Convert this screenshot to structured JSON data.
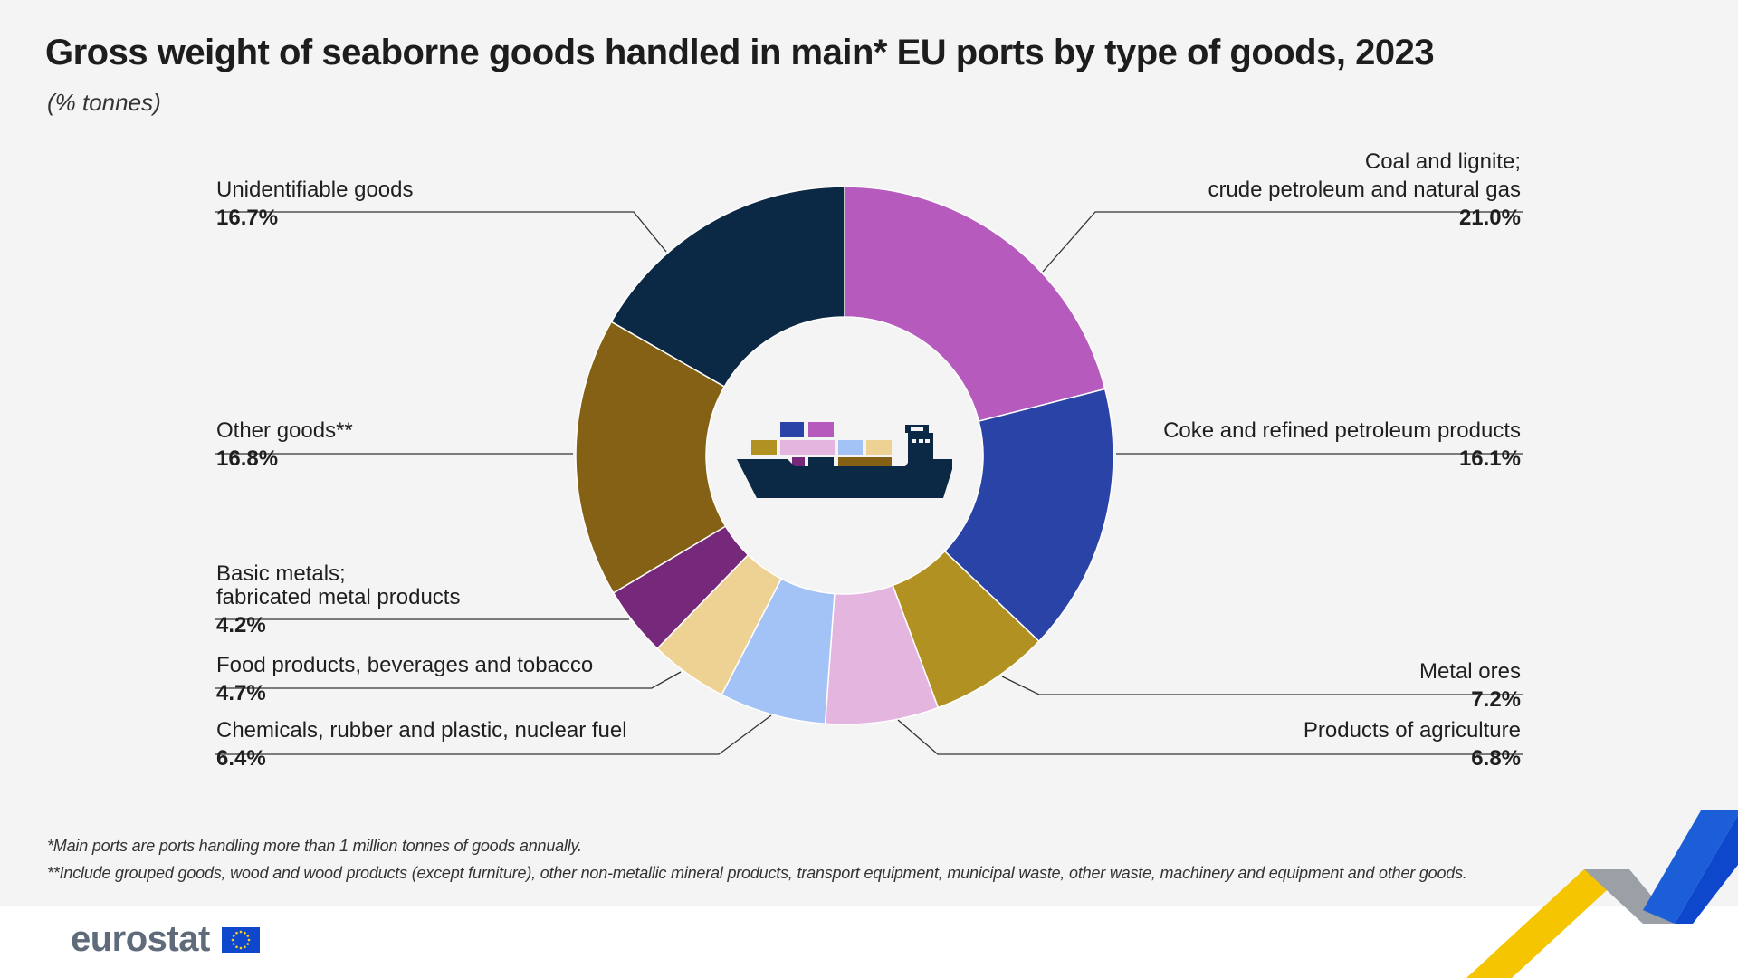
{
  "title": "Gross weight of seaborne goods handled in main* EU ports by type of goods, 2023",
  "subtitle": "(% tonnes)",
  "footnotes": [
    "*Main ports are ports handling more than 1 million tonnes of goods annually.",
    "**Include grouped goods, wood and wood products (except furniture), other non-metallic mineral products, transport equipment, municipal waste, other waste, machinery and equipment and other goods."
  ],
  "brand": "eurostat",
  "chart_data": {
    "type": "pie",
    "variant": "donut",
    "unit": "%",
    "slices": [
      {
        "label": "Coal and lignite;\ncrude petroleum and natural gas",
        "value": 21.0,
        "value_label": "21.0%",
        "color": "#b65bbd",
        "side": "right"
      },
      {
        "label": "Coke and refined petroleum products",
        "value": 16.1,
        "value_label": "16.1%",
        "color": "#2a43a6",
        "side": "right"
      },
      {
        "label": "Metal ores",
        "value": 7.2,
        "value_label": "7.2%",
        "color": "#b09122",
        "side": "right"
      },
      {
        "label": "Products of agriculture",
        "value": 6.8,
        "value_label": "6.8%",
        "color": "#e3b5df",
        "side": "right"
      },
      {
        "label": "Chemicals, rubber and plastic, nuclear fuel",
        "value": 6.4,
        "value_label": "6.4%",
        "color": "#a3c3f7",
        "side": "left"
      },
      {
        "label": "Food products, beverages and tobacco",
        "value": 4.7,
        "value_label": "4.7%",
        "color": "#eed293",
        "side": "left"
      },
      {
        "label": "Basic metals;\nfabricated metal products",
        "value": 4.2,
        "value_label": "4.2%",
        "color": "#76287a",
        "side": "left"
      },
      {
        "label": "Other goods**",
        "value": 16.8,
        "value_label": "16.8%",
        "color": "#846114",
        "side": "left"
      },
      {
        "label": "Unidentifiable goods",
        "value": 16.7,
        "value_label": "16.7%",
        "color": "#0b2845",
        "side": "left"
      }
    ],
    "center_icon": "cargo-ship-icon",
    "legend": "none"
  },
  "icons": {
    "center": "cargo-ship-icon",
    "flag": "eu-flag-icon",
    "corner": "decorative-ribbon-icon"
  }
}
